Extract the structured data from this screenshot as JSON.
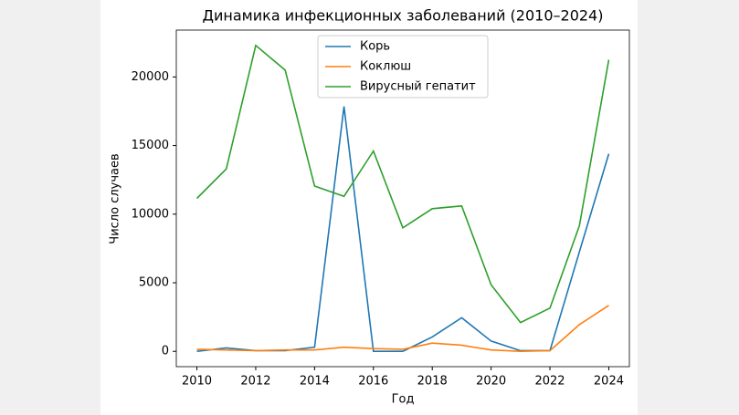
{
  "chart_data": {
    "type": "line",
    "title": "Динамика инфекционных заболеваний (2010–2024)",
    "x_label": "Год",
    "y_label": "Число случаев",
    "x": [
      2010,
      2011,
      2012,
      2013,
      2014,
      2015,
      2016,
      2017,
      2018,
      2019,
      2020,
      2021,
      2022,
      2023,
      2024
    ],
    "series": [
      {
        "name": "Корь",
        "color": "#1f77b4",
        "values": [
          0,
          250,
          50,
          50,
          300,
          17850,
          0,
          0,
          1050,
          2450,
          750,
          50,
          50,
          7250,
          14400
        ]
      },
      {
        "name": "Коклюш",
        "color": "#ff7f0e",
        "values": [
          150,
          100,
          50,
          100,
          100,
          300,
          200,
          150,
          600,
          450,
          100,
          0,
          50,
          1950,
          3350
        ]
      },
      {
        "name": "Вирусный гепатит",
        "color": "#2ca02c",
        "values": [
          11150,
          13300,
          22300,
          20500,
          12050,
          11300,
          14600,
          9000,
          10400,
          10600,
          4850,
          2100,
          3150,
          9150,
          21250
        ]
      }
    ],
    "xlim": [
      2009.3,
      2024.7
    ],
    "xticks": [
      2010,
      2012,
      2014,
      2016,
      2018,
      2020,
      2022,
      2024
    ],
    "ylim": [
      -1115,
      23415
    ],
    "yticks": [
      0,
      5000,
      10000,
      15000,
      20000
    ],
    "legend": "upper center"
  }
}
